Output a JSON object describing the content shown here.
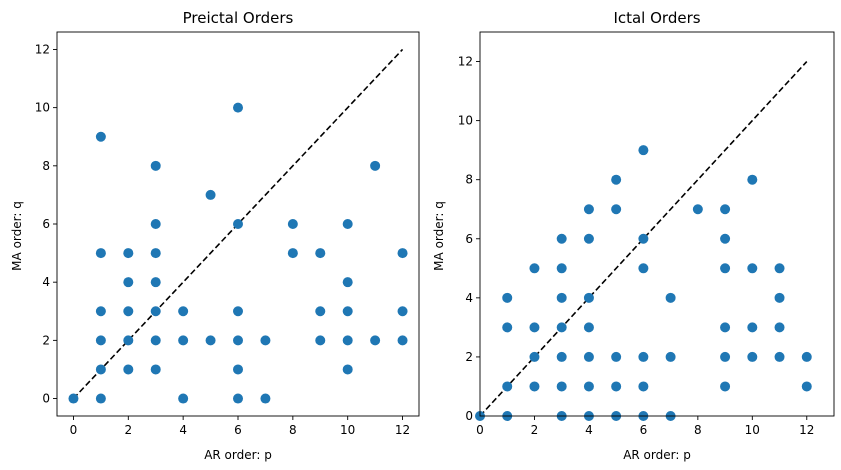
{
  "chart_data": [
    {
      "type": "scatter",
      "title": "Preictal Orders",
      "xlabel": "AR order: p",
      "ylabel": "MA order: q",
      "xlim": [
        -0.6,
        12.6
      ],
      "ylim": [
        -0.6,
        12.6
      ],
      "xticks": [
        0,
        2,
        4,
        6,
        8,
        10,
        12
      ],
      "yticks": [
        0,
        2,
        4,
        6,
        8,
        10,
        12
      ],
      "xtick_labels": [
        "0",
        "2",
        "4",
        "6",
        "8",
        "10",
        "12"
      ],
      "ytick_labels": [
        "0",
        "2",
        "4",
        "6",
        "8",
        "10",
        "12"
      ],
      "grid": false,
      "marker_color": "#1f77b4",
      "reference_line": {
        "x": [
          0,
          12
        ],
        "y": [
          0,
          12
        ],
        "style": "dashed",
        "color": "#000000"
      },
      "points": [
        [
          0,
          0
        ],
        [
          1,
          0
        ],
        [
          1,
          1
        ],
        [
          1,
          2
        ],
        [
          1,
          3
        ],
        [
          1,
          5
        ],
        [
          1,
          9
        ],
        [
          2,
          1
        ],
        [
          2,
          2
        ],
        [
          2,
          3
        ],
        [
          2,
          4
        ],
        [
          2,
          5
        ],
        [
          3,
          1
        ],
        [
          3,
          2
        ],
        [
          3,
          3
        ],
        [
          3,
          4
        ],
        [
          3,
          5
        ],
        [
          3,
          6
        ],
        [
          3,
          8
        ],
        [
          4,
          0
        ],
        [
          4,
          2
        ],
        [
          4,
          3
        ],
        [
          5,
          2
        ],
        [
          5,
          7
        ],
        [
          6,
          0
        ],
        [
          6,
          1
        ],
        [
          6,
          2
        ],
        [
          6,
          3
        ],
        [
          6,
          6
        ],
        [
          6,
          10
        ],
        [
          7,
          0
        ],
        [
          7,
          2
        ],
        [
          8,
          5
        ],
        [
          8,
          6
        ],
        [
          9,
          2
        ],
        [
          9,
          3
        ],
        [
          9,
          5
        ],
        [
          10,
          1
        ],
        [
          10,
          2
        ],
        [
          10,
          3
        ],
        [
          10,
          4
        ],
        [
          10,
          6
        ],
        [
          11,
          2
        ],
        [
          11,
          8
        ],
        [
          12,
          2
        ],
        [
          12,
          3
        ],
        [
          12,
          5
        ]
      ]
    },
    {
      "type": "scatter",
      "title": "Ictal Orders",
      "xlabel": "AR order: p",
      "ylabel": "MA order: q",
      "xlim": [
        0,
        13
      ],
      "ylim": [
        0,
        13
      ],
      "xticks": [
        0,
        2,
        4,
        6,
        8,
        10,
        12
      ],
      "yticks": [
        0,
        2,
        4,
        6,
        8,
        10,
        12
      ],
      "xtick_labels": [
        "0",
        "2",
        "4",
        "6",
        "8",
        "10",
        "12"
      ],
      "ytick_labels": [
        "0",
        "2",
        "4",
        "6",
        "8",
        "10",
        "12"
      ],
      "grid": false,
      "marker_color": "#1f77b4",
      "reference_line": {
        "x": [
          0,
          12
        ],
        "y": [
          0,
          12
        ],
        "style": "dashed",
        "color": "#000000"
      },
      "points": [
        [
          0,
          0
        ],
        [
          1,
          0
        ],
        [
          1,
          1
        ],
        [
          1,
          3
        ],
        [
          1,
          4
        ],
        [
          2,
          1
        ],
        [
          2,
          2
        ],
        [
          2,
          3
        ],
        [
          2,
          5
        ],
        [
          3,
          0
        ],
        [
          3,
          1
        ],
        [
          3,
          2
        ],
        [
          3,
          3
        ],
        [
          3,
          4
        ],
        [
          3,
          5
        ],
        [
          3,
          6
        ],
        [
          4,
          0
        ],
        [
          4,
          1
        ],
        [
          4,
          2
        ],
        [
          4,
          3
        ],
        [
          4,
          4
        ],
        [
          4,
          6
        ],
        [
          4,
          7
        ],
        [
          5,
          0
        ],
        [
          5,
          1
        ],
        [
          5,
          2
        ],
        [
          5,
          7
        ],
        [
          5,
          8
        ],
        [
          6,
          0
        ],
        [
          6,
          1
        ],
        [
          6,
          2
        ],
        [
          6,
          5
        ],
        [
          6,
          6
        ],
        [
          6,
          9
        ],
        [
          7,
          0
        ],
        [
          7,
          2
        ],
        [
          7,
          4
        ],
        [
          8,
          7
        ],
        [
          9,
          1
        ],
        [
          9,
          2
        ],
        [
          9,
          3
        ],
        [
          9,
          5
        ],
        [
          9,
          6
        ],
        [
          9,
          7
        ],
        [
          10,
          2
        ],
        [
          10,
          3
        ],
        [
          10,
          5
        ],
        [
          10,
          8
        ],
        [
          11,
          2
        ],
        [
          11,
          3
        ],
        [
          11,
          4
        ],
        [
          11,
          5
        ],
        [
          12,
          1
        ],
        [
          12,
          2
        ]
      ]
    }
  ]
}
